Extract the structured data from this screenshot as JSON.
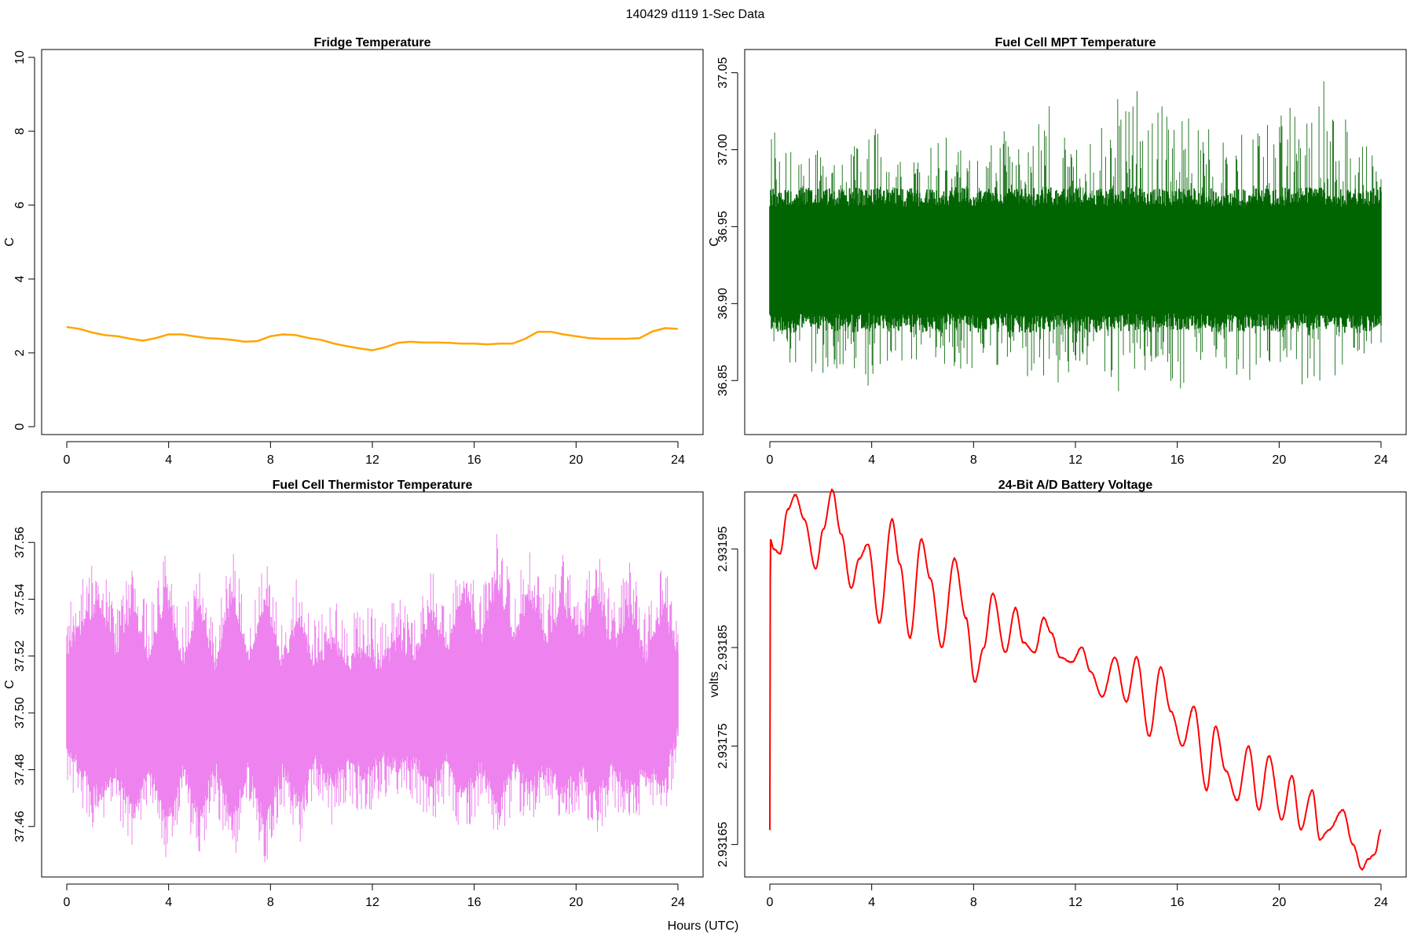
{
  "figure": {
    "title": "140429   d119   1-Sec Data",
    "xlabel": "Hours (UTC)"
  },
  "chart_data": [
    {
      "type": "line",
      "title": "Fridge Temperature",
      "xlabel": "",
      "ylabel": "C",
      "color": "#ffa500",
      "xlim": [
        0,
        24
      ],
      "ylim": [
        0,
        10
      ],
      "xticks": [
        0,
        4,
        8,
        12,
        16,
        20,
        24
      ],
      "yticks": [
        0,
        2,
        4,
        6,
        8,
        10
      ],
      "ytick_labels": [
        "0",
        "2",
        "4",
        "6",
        "8",
        "10"
      ],
      "series": [
        {
          "name": "Fridge Temperature",
          "x": [
            0,
            0.5,
            1,
            1.5,
            2,
            2.5,
            3,
            3.5,
            4,
            4.5,
            5,
            5.5,
            6,
            6.5,
            7,
            7.5,
            8,
            8.5,
            9,
            9.5,
            10,
            10.5,
            11,
            11.5,
            12,
            12.5,
            13,
            13.5,
            14,
            14.5,
            15,
            15.5,
            16,
            16.5,
            17,
            17.5,
            18,
            18.5,
            19,
            19.5,
            20,
            20.5,
            21,
            21.5,
            22,
            22.5,
            23,
            23.5,
            24
          ],
          "y": [
            2.7,
            2.65,
            2.55,
            2.48,
            2.45,
            2.38,
            2.33,
            2.4,
            2.5,
            2.5,
            2.45,
            2.4,
            2.38,
            2.35,
            2.3,
            2.32,
            2.45,
            2.5,
            2.48,
            2.4,
            2.35,
            2.25,
            2.18,
            2.12,
            2.07,
            2.15,
            2.27,
            2.3,
            2.28,
            2.28,
            2.27,
            2.25,
            2.25,
            2.23,
            2.25,
            2.25,
            2.38,
            2.57,
            2.57,
            2.5,
            2.45,
            2.4,
            2.38,
            2.38,
            2.38,
            2.4,
            2.58,
            2.67,
            2.65
          ]
        }
      ]
    },
    {
      "type": "line",
      "title": "Fuel Cell MPT Temperature",
      "xlabel": "",
      "ylabel": "C",
      "color": "#006400",
      "xlim": [
        0,
        24
      ],
      "ylim": [
        36.82,
        37.06
      ],
      "xticks": [
        0,
        4,
        8,
        12,
        16,
        20,
        24
      ],
      "yticks": [
        36.85,
        36.9,
        36.95,
        37.0,
        37.05
      ],
      "ytick_labels": [
        "36.85",
        "36.90",
        "36.95",
        "37.00",
        "37.05"
      ],
      "series": [
        {
          "name": "Fuel Cell MPT Temperature",
          "x": [
            0,
            1,
            2,
            3,
            4,
            5,
            6,
            7,
            8,
            9,
            10,
            11,
            12,
            13,
            14,
            15,
            16,
            17,
            18,
            19,
            20,
            21,
            22,
            23,
            24
          ],
          "mean": [
            36.928,
            36.928,
            36.929,
            36.928,
            36.929,
            36.928,
            36.928,
            36.929,
            36.928,
            36.929,
            36.928,
            36.929,
            36.928,
            36.928,
            36.929,
            36.928,
            36.929,
            36.928,
            36.928,
            36.929,
            36.928,
            36.929,
            36.928,
            36.928,
            36.929
          ],
          "max": [
            37.02,
            37.01,
            37.0,
            36.99,
            37.03,
            37.0,
            37.0,
            37.01,
            36.99,
            37.02,
            37.0,
            37.03,
            37.0,
            37.02,
            37.04,
            37.04,
            37.02,
            37.03,
            37.0,
            37.02,
            37.03,
            37.03,
            37.05,
            37.01,
            37.0
          ],
          "min": [
            36.86,
            36.85,
            36.85,
            36.86,
            36.84,
            36.86,
            36.86,
            36.86,
            36.85,
            36.86,
            36.85,
            36.84,
            36.86,
            36.85,
            36.84,
            36.86,
            36.84,
            36.86,
            36.85,
            36.85,
            36.86,
            36.84,
            36.85,
            36.86,
            36.87
          ]
        }
      ]
    },
    {
      "type": "line",
      "title": "Fuel Cell Thermistor Temperature",
      "xlabel": "",
      "ylabel": "C",
      "color": "#ee82ee",
      "xlim": [
        0,
        24
      ],
      "ylim": [
        37.445,
        37.575
      ],
      "xticks": [
        0,
        4,
        8,
        12,
        16,
        20,
        24
      ],
      "yticks": [
        37.46,
        37.48,
        37.5,
        37.52,
        37.54,
        37.56
      ],
      "ytick_labels": [
        "37.46",
        "37.48",
        "37.50",
        "37.52",
        "37.54",
        "37.56"
      ],
      "series": [
        {
          "name": "Fuel Cell Thermistor Temperature",
          "x": [
            0,
            0.65,
            1.3,
            1.95,
            2.6,
            3.25,
            3.9,
            4.55,
            5.2,
            5.85,
            6.5,
            7.15,
            7.8,
            8.45,
            9.1,
            9.75,
            10.4,
            11.05,
            11.7,
            12.35,
            13.0,
            13.65,
            14.3,
            14.95,
            15.6,
            16.25,
            16.9,
            17.55,
            18.2,
            18.85,
            19.5,
            20.15,
            20.8,
            21.45,
            22.1,
            22.75,
            23.4,
            24
          ],
          "upper": [
            37.525,
            37.535,
            37.542,
            37.525,
            37.54,
            37.522,
            37.545,
            37.52,
            37.54,
            37.52,
            37.545,
            37.522,
            37.542,
            37.52,
            37.535,
            37.52,
            37.528,
            37.52,
            37.525,
            37.52,
            37.528,
            37.522,
            37.538,
            37.525,
            37.545,
            37.528,
            37.55,
            37.53,
            37.545,
            37.528,
            37.542,
            37.528,
            37.545,
            37.525,
            37.54,
            37.522,
            37.54,
            37.525
          ],
          "lower": [
            37.485,
            37.475,
            37.468,
            37.475,
            37.462,
            37.478,
            37.458,
            37.478,
            37.46,
            37.478,
            37.458,
            37.478,
            37.458,
            37.478,
            37.465,
            37.48,
            37.472,
            37.48,
            37.475,
            37.482,
            37.478,
            37.48,
            37.472,
            37.48,
            37.468,
            37.478,
            37.465,
            37.478,
            37.47,
            37.478,
            37.468,
            37.478,
            37.468,
            37.478,
            37.47,
            37.478,
            37.472,
            37.49
          ]
        }
      ]
    },
    {
      "type": "line",
      "title": "24-Bit A/D Battery Voltage",
      "xlabel": "",
      "ylabel": "volts",
      "color": "#ff0000",
      "xlim": [
        0,
        24
      ],
      "ylim": [
        2.931625,
        2.932
      ],
      "xticks": [
        0,
        4,
        8,
        12,
        16,
        20,
        24
      ],
      "yticks": [
        2.93165,
        2.93175,
        2.93185,
        2.93195
      ],
      "ytick_labels": [
        "2.93165",
        "2.93175",
        "2.93185",
        "2.93195"
      ],
      "series": [
        {
          "name": "24-Bit A/D Battery Voltage",
          "x": [
            0,
            0.02,
            0.15,
            0.4,
            0.7,
            1.0,
            1.35,
            1.8,
            2.1,
            2.45,
            2.8,
            3.2,
            3.5,
            3.85,
            4.3,
            4.8,
            5.1,
            5.5,
            5.95,
            6.3,
            6.75,
            7.25,
            7.7,
            8.05,
            8.4,
            8.75,
            9.25,
            9.65,
            9.95,
            10.4,
            10.75,
            11.05,
            11.4,
            11.85,
            12.25,
            12.6,
            13.05,
            13.55,
            14.0,
            14.4,
            14.9,
            15.35,
            15.75,
            16.2,
            16.65,
            17.15,
            17.5,
            17.9,
            18.35,
            18.8,
            19.2,
            19.6,
            20.1,
            20.5,
            20.85,
            21.3,
            21.6,
            21.95,
            22.5,
            22.9,
            23.25,
            23.5,
            23.75,
            24
          ],
          "y": [
            2.931665,
            2.93196,
            2.93195,
            2.931945,
            2.93199,
            2.932005,
            2.93198,
            2.93193,
            2.93197,
            2.93201,
            2.931965,
            2.93191,
            2.93194,
            2.931955,
            2.931875,
            2.93198,
            2.931935,
            2.93186,
            2.93196,
            2.93192,
            2.93185,
            2.93194,
            2.93188,
            2.931815,
            2.93185,
            2.931905,
            2.931845,
            2.93189,
            2.931855,
            2.931845,
            2.93188,
            2.931865,
            2.93184,
            2.931835,
            2.93185,
            2.931825,
            2.9318,
            2.93184,
            2.931795,
            2.93184,
            2.93176,
            2.93183,
            2.931785,
            2.93175,
            2.93179,
            2.931705,
            2.93177,
            2.931725,
            2.931695,
            2.93175,
            2.931685,
            2.93174,
            2.931675,
            2.93172,
            2.931665,
            2.931705,
            2.931655,
            2.931665,
            2.931685,
            2.93165,
            2.931625,
            2.931635,
            2.93164,
            2.931665
          ]
        }
      ]
    }
  ]
}
